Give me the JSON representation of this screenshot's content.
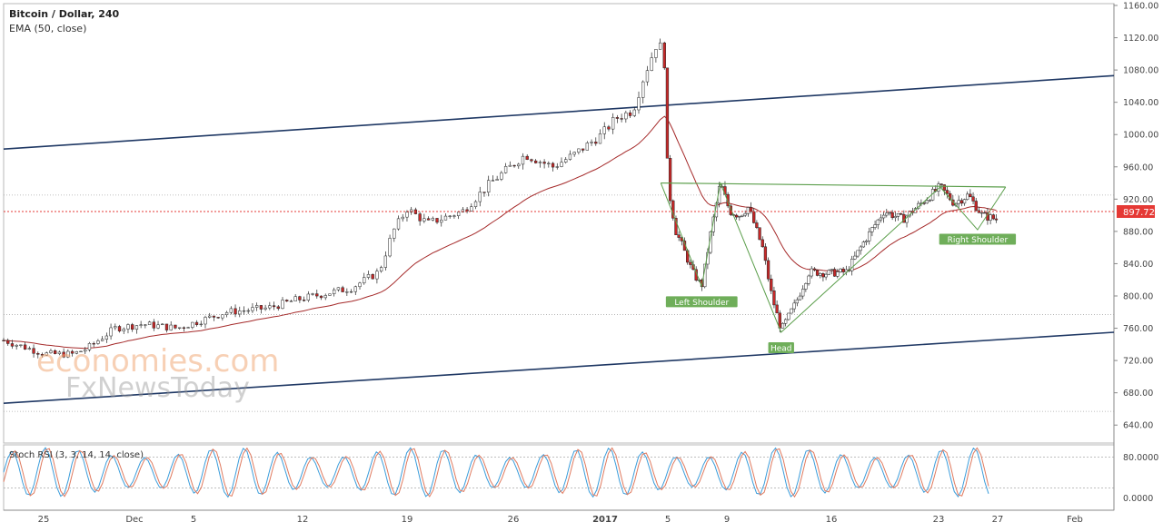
{
  "chart_data": {
    "type": "candlestick",
    "title": "Bitcoin / Dollar, 240",
    "indicator_label": "EMA (50, close)",
    "current_price": "897.72",
    "price_axis": {
      "ylim": [
        620,
        1160
      ],
      "ticks": [
        "1160.00",
        "1120.00",
        "1080.00",
        "1040.00",
        "1000.00",
        "960.00",
        "920.00",
        "880.00",
        "840.00",
        "800.00",
        "760.00",
        "720.00",
        "680.00",
        "640.00"
      ]
    },
    "x_ticks": [
      "25",
      "Dec",
      "5",
      "12",
      "19",
      "26",
      "2017",
      "5",
      "9",
      "16",
      "23",
      "27",
      "Feb"
    ],
    "patterns": [
      {
        "label": "Left Shoulder",
        "price": 812
      },
      {
        "label": "Head",
        "price": 755
      },
      {
        "label": "Right Shoulder",
        "price": 885
      }
    ],
    "price_path": [
      {
        "t": 0,
        "p": 745
      },
      {
        "t": 0.06,
        "p": 728
      },
      {
        "t": 0.1,
        "p": 728
      },
      {
        "t": 0.12,
        "p": 735
      },
      {
        "t": 0.16,
        "p": 760
      },
      {
        "t": 0.2,
        "p": 765
      },
      {
        "t": 0.25,
        "p": 760
      },
      {
        "t": 0.32,
        "p": 780
      },
      {
        "t": 0.38,
        "p": 785
      },
      {
        "t": 0.42,
        "p": 795
      },
      {
        "t": 0.5,
        "p": 810
      },
      {
        "t": 0.54,
        "p": 830
      },
      {
        "t": 0.56,
        "p": 880
      },
      {
        "t": 0.58,
        "p": 908
      },
      {
        "t": 0.61,
        "p": 890
      },
      {
        "t": 0.66,
        "p": 905
      },
      {
        "t": 0.7,
        "p": 940
      },
      {
        "t": 0.75,
        "p": 975
      },
      {
        "t": 0.79,
        "p": 960
      },
      {
        "t": 0.82,
        "p": 975
      },
      {
        "t": 0.86,
        "p": 1000
      },
      {
        "t": 0.88,
        "p": 1020
      },
      {
        "t": 0.905,
        "p": 1030
      },
      {
        "t": 0.92,
        "p": 1070
      },
      {
        "t": 0.94,
        "p": 1115
      },
      {
        "t": 0.95,
        "p": 1100
      }
    ],
    "stoch_rsi": {
      "label": "Stoch RSI (3, 3, 14, 14, close)",
      "ylim": [
        -20,
        100
      ],
      "ticks": [
        "80.0000",
        "0.0000"
      ]
    }
  },
  "watermark": {
    "line1": "economies.com",
    "line2": "FxNewsToday"
  }
}
